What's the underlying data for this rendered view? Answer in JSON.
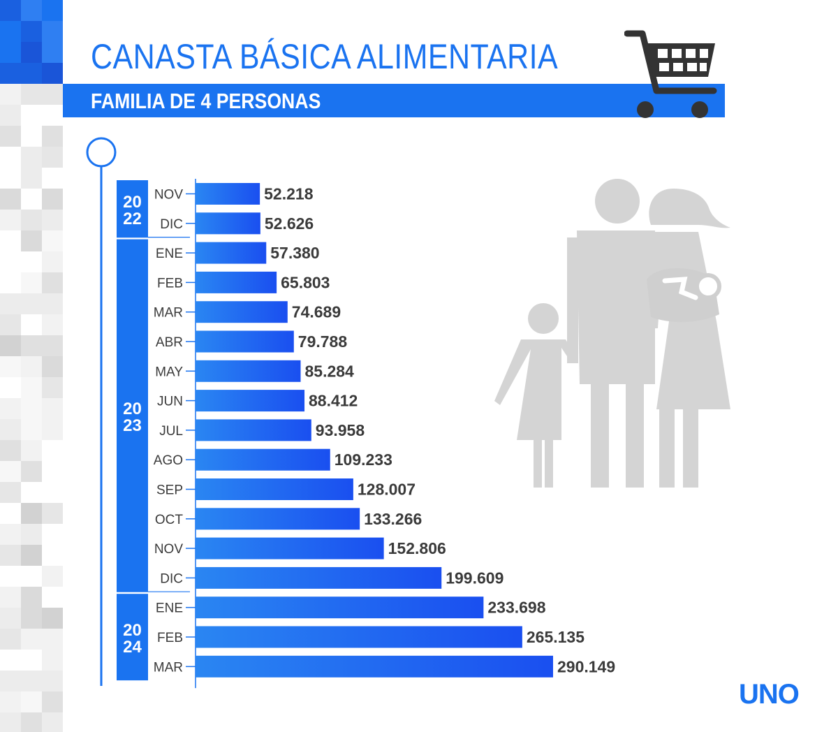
{
  "header": {
    "title": "CANASTA BÁSICA ALIMENTARIA",
    "subtitle": "FAMILIA DE 4 PERSONAS"
  },
  "icons": [
    "shopping-cart-icon",
    "family-icon"
  ],
  "colors": {
    "accent": "#1a73f0",
    "bar_start": "#1a6ff0",
    "bar_end": "#1a4ff0",
    "value_text": "#3a3a3a",
    "figure_gray": "#d4d4d4",
    "cart_dark": "#333333"
  },
  "logo": {
    "text": "UNO"
  },
  "chart_data": {
    "type": "bar",
    "orientation": "horizontal",
    "year_groups": [
      {
        "label_top": "20",
        "label_bottom": "22",
        "months": [
          "NOV",
          "DIC"
        ]
      },
      {
        "label_top": "20",
        "label_bottom": "23",
        "months": [
          "ENE",
          "FEB",
          "MAR",
          "ABR",
          "MAY",
          "JUN",
          "JUL",
          "AGO",
          "SEP",
          "OCT",
          "NOV",
          "DIC"
        ]
      },
      {
        "label_top": "20",
        "label_bottom": "24",
        "months": [
          "ENE",
          "FEB",
          "MAR"
        ]
      }
    ],
    "categories": [
      "NOV",
      "DIC",
      "ENE",
      "FEB",
      "MAR",
      "ABR",
      "MAY",
      "JUN",
      "JUL",
      "AGO",
      "SEP",
      "OCT",
      "NOV",
      "DIC",
      "ENE",
      "FEB",
      "MAR"
    ],
    "values": [
      52218,
      52626,
      57380,
      65803,
      74689,
      79788,
      85284,
      88412,
      93958,
      109233,
      128007,
      133266,
      152806,
      199609,
      233698,
      265135,
      290149
    ],
    "value_labels": [
      "52.218",
      "52.626",
      "57.380",
      "65.803",
      "74.689",
      "79.788",
      "85.284",
      "88.412",
      "93.958",
      "109.233",
      "128.007",
      "133.266",
      "152.806",
      "199.609",
      "233.698",
      "265.135",
      "290.149"
    ],
    "xlim": [
      0,
      290149
    ]
  }
}
